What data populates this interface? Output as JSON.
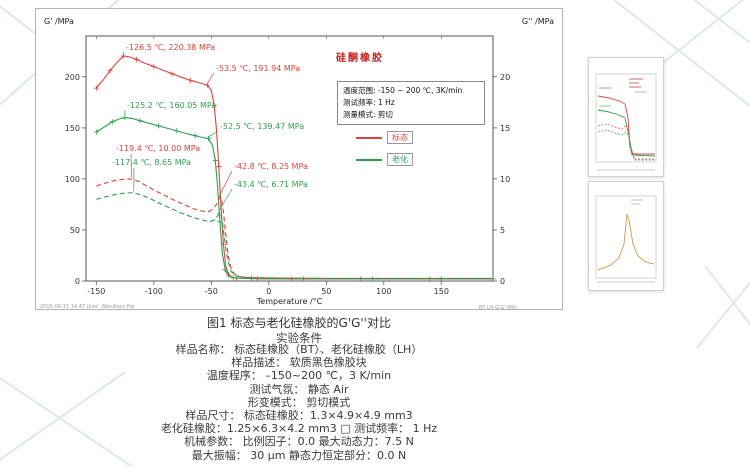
{
  "page": {
    "caption": "图1 标态与老化硅橡胶的G'G''对比",
    "conditions_title": "实验条件",
    "conditions": [
      "样品名称：  标态硅橡胶（BT）、老化硅橡胶（LH）",
      "样品描述：  软质黑色橡胶块",
      "温度程序：  –150~200 ℃，3 K/min",
      "测试气氛：  静态 Air",
      "形变模式：  剪切模式",
      "样品尺寸：  标态硅橡胶：1.3×4.9×4.9 mm3",
      "老化硅橡胶：1.25×6.3×4.2 mm3 □ 测试频率：  1 Hz",
      "机械参数：  比例因子：0.0 最大动态力：7.5 N",
      "最大振幅：  30 μm 静态力恒定部分：0.0 N"
    ]
  },
  "chart_data": {
    "type": "line",
    "title": "硅酮橡胶",
    "title_color": "#cc2222",
    "xlabel": "Temperature /°C",
    "ylabel_left": "G' /MPa",
    "ylabel_right": "G'' /MPa",
    "xlim": [
      -159,
      195
    ],
    "ylim_left": [
      0,
      240
    ],
    "ylim_right": [
      0,
      24
    ],
    "xticks": [
      -150,
      -100,
      -50,
      0,
      50,
      100,
      150
    ],
    "yticks_left": [
      0,
      50,
      100,
      150,
      200
    ],
    "yticks_right": [
      0,
      5,
      10,
      15,
      20
    ],
    "info_lines": [
      "温度范围:  -150 ~ 200 ℃, 3K/min",
      "测试频率:  1 Hz",
      "测量模式:  剪切"
    ],
    "legend": [
      {
        "label": "标态",
        "color": "#d9453c"
      },
      {
        "label": "老化",
        "color": "#2f9e4f"
      }
    ],
    "footer_left": "2015-06-15 14:47   User: Wandless Pro",
    "footer_right": "BT LH G'G''对比",
    "series": [
      {
        "name": "标态 G'",
        "axis": "left",
        "color": "#d9453c",
        "dash": "",
        "markers": true,
        "points": [
          [
            -150,
            189
          ],
          [
            -144,
            197
          ],
          [
            -138,
            206
          ],
          [
            -132,
            214
          ],
          [
            -126.5,
            220.4
          ],
          [
            -121,
            219.5
          ],
          [
            -115,
            217
          ],
          [
            -108,
            213.5
          ],
          [
            -100,
            210
          ],
          [
            -92,
            206.5
          ],
          [
            -84,
            203
          ],
          [
            -76,
            199.5
          ],
          [
            -68,
            196.5
          ],
          [
            -60,
            194
          ],
          [
            -53.5,
            191.9
          ],
          [
            -50,
            187
          ],
          [
            -47.5,
            172
          ],
          [
            -45.5,
            148
          ],
          [
            -43.5,
            112
          ],
          [
            -41.5,
            70
          ],
          [
            -39.5,
            36
          ],
          [
            -37.5,
            15
          ],
          [
            -35,
            6
          ],
          [
            -32,
            3.5
          ],
          [
            -28,
            2.8
          ],
          [
            -20,
            2.5
          ],
          [
            -10,
            2.3
          ],
          [
            0,
            2.2
          ],
          [
            20,
            2.1
          ],
          [
            50,
            2
          ],
          [
            80,
            2
          ],
          [
            110,
            2
          ],
          [
            140,
            2
          ],
          [
            170,
            2
          ],
          [
            195,
            2
          ]
        ]
      },
      {
        "name": "老化 G'",
        "axis": "left",
        "color": "#2f9e4f",
        "dash": "",
        "markers": true,
        "points": [
          [
            -150,
            146
          ],
          [
            -143,
            151
          ],
          [
            -136,
            156
          ],
          [
            -130,
            158.8
          ],
          [
            -125.2,
            160.1
          ],
          [
            -119,
            159.3
          ],
          [
            -112,
            157
          ],
          [
            -104,
            154.5
          ],
          [
            -96,
            152
          ],
          [
            -88,
            149.5
          ],
          [
            -80,
            147
          ],
          [
            -72,
            144.5
          ],
          [
            -64,
            142.3
          ],
          [
            -57,
            140.5
          ],
          [
            -52.5,
            139.5
          ],
          [
            -49,
            133
          ],
          [
            -46.5,
            118
          ],
          [
            -44.5,
            92
          ],
          [
            -42.5,
            58
          ],
          [
            -40.5,
            28
          ],
          [
            -38,
            11
          ],
          [
            -35,
            5
          ],
          [
            -31,
            3.2
          ],
          [
            -25,
            2.8
          ],
          [
            -15,
            2.5
          ],
          [
            0,
            2.3
          ],
          [
            30,
            2.2
          ],
          [
            60,
            2.1
          ],
          [
            90,
            2.1
          ],
          [
            120,
            2.1
          ],
          [
            150,
            2.1
          ],
          [
            180,
            2.1
          ],
          [
            195,
            2.1
          ]
        ]
      },
      {
        "name": "标态 G''",
        "axis": "right",
        "color": "#d9453c",
        "dash": "5,3",
        "markers": false,
        "points": [
          [
            -150,
            9.3
          ],
          [
            -142,
            9.6
          ],
          [
            -134,
            9.85
          ],
          [
            -126,
            9.97
          ],
          [
            -119.4,
            10.0
          ],
          [
            -113,
            9.75
          ],
          [
            -106,
            9.3
          ],
          [
            -98,
            8.8
          ],
          [
            -90,
            8.35
          ],
          [
            -82,
            7.9
          ],
          [
            -74,
            7.5
          ],
          [
            -66,
            7.1
          ],
          [
            -58,
            6.85
          ],
          [
            -52,
            6.8
          ],
          [
            -48,
            7.1
          ],
          [
            -45,
            7.6
          ],
          [
            -42.8,
            8.25
          ],
          [
            -41,
            7.9
          ],
          [
            -39.5,
            6.8
          ],
          [
            -38,
            5.2
          ],
          [
            -36.5,
            3.6
          ],
          [
            -35,
            2.3
          ],
          [
            -33,
            1.3
          ],
          [
            -30,
            0.7
          ],
          [
            -26,
            0.45
          ],
          [
            -20,
            0.35
          ],
          [
            -10,
            0.3
          ],
          [
            0,
            0.3
          ],
          [
            25,
            0.27
          ],
          [
            50,
            0.25
          ],
          [
            100,
            0.25
          ],
          [
            150,
            0.25
          ],
          [
            195,
            0.25
          ]
        ]
      },
      {
        "name": "老化 G''",
        "axis": "right",
        "color": "#2f9e4f",
        "dash": "5,3",
        "markers": false,
        "points": [
          [
            -150,
            8.0
          ],
          [
            -142,
            8.25
          ],
          [
            -134,
            8.45
          ],
          [
            -126,
            8.6
          ],
          [
            -117.4,
            8.65
          ],
          [
            -110,
            8.4
          ],
          [
            -102,
            8.0
          ],
          [
            -94,
            7.55
          ],
          [
            -86,
            7.15
          ],
          [
            -78,
            6.75
          ],
          [
            -70,
            6.4
          ],
          [
            -62,
            6.1
          ],
          [
            -55,
            5.9
          ],
          [
            -50,
            5.85
          ],
          [
            -47,
            6.0
          ],
          [
            -45,
            6.3
          ],
          [
            -43.4,
            6.71
          ],
          [
            -41.5,
            6.4
          ],
          [
            -40,
            5.5
          ],
          [
            -38.5,
            4.2
          ],
          [
            -37,
            2.9
          ],
          [
            -35,
            1.7
          ],
          [
            -32.5,
            0.9
          ],
          [
            -29,
            0.55
          ],
          [
            -24,
            0.4
          ],
          [
            -15,
            0.33
          ],
          [
            0,
            0.3
          ],
          [
            25,
            0.27
          ],
          [
            50,
            0.25
          ],
          [
            100,
            0.25
          ],
          [
            150,
            0.25
          ],
          [
            195,
            0.25
          ]
        ]
      }
    ],
    "annotations": [
      {
        "text": "-126.5 ℃, 220.38 MPa",
        "color": "#d9453c",
        "axis": "left",
        "point": [
          -126.5,
          220.38
        ],
        "label": [
          90,
          41
        ],
        "arrow": [
          88,
          43
        ]
      },
      {
        "text": "-53.5 ℃, 191.94 MPa",
        "color": "#d9453c",
        "axis": "left",
        "point": [
          -53.5,
          191.94
        ],
        "label": [
          180,
          62
        ],
        "arrow": [
          178,
          64
        ]
      },
      {
        "text": "-125.2 ℃, 160.05 MPa",
        "color": "#2f9e4f",
        "axis": "left",
        "point": [
          -125.2,
          160.05
        ],
        "label": [
          91,
          99
        ],
        "arrow": [
          89,
          101
        ]
      },
      {
        "text": "-52.5 ℃, 139.47 MPa",
        "color": "#2f9e4f",
        "axis": "left",
        "point": [
          -52.5,
          139.47
        ],
        "label": [
          184,
          120
        ],
        "arrow": [
          182,
          122
        ]
      },
      {
        "text": "-119.4 ℃, 10.00 MPa",
        "color": "#d9453c",
        "axis": "right",
        "point": [
          -119.4,
          10.0
        ],
        "label": [
          80,
          142
        ],
        "arrow": [
          95,
          145
        ]
      },
      {
        "text": "-117.4 ℃, 8.65 MPa",
        "color": "#2f9e4f",
        "axis": "right",
        "point": [
          -117.4,
          8.65
        ],
        "label": [
          76,
          156
        ],
        "arrow": [
          98,
          159
        ]
      },
      {
        "text": "-42.8 ℃, 8.25 MPa",
        "color": "#d9453c",
        "axis": "right",
        "point": [
          -42.8,
          8.25
        ],
        "label": [
          198,
          160
        ],
        "arrow": [
          196,
          162
        ]
      },
      {
        "text": "-43.4 ℃, 6.71 MPa",
        "color": "#2f9e4f",
        "axis": "right",
        "point": [
          -43.4,
          6.71
        ],
        "label": [
          198,
          178
        ],
        "arrow": [
          196,
          180
        ]
      }
    ]
  }
}
